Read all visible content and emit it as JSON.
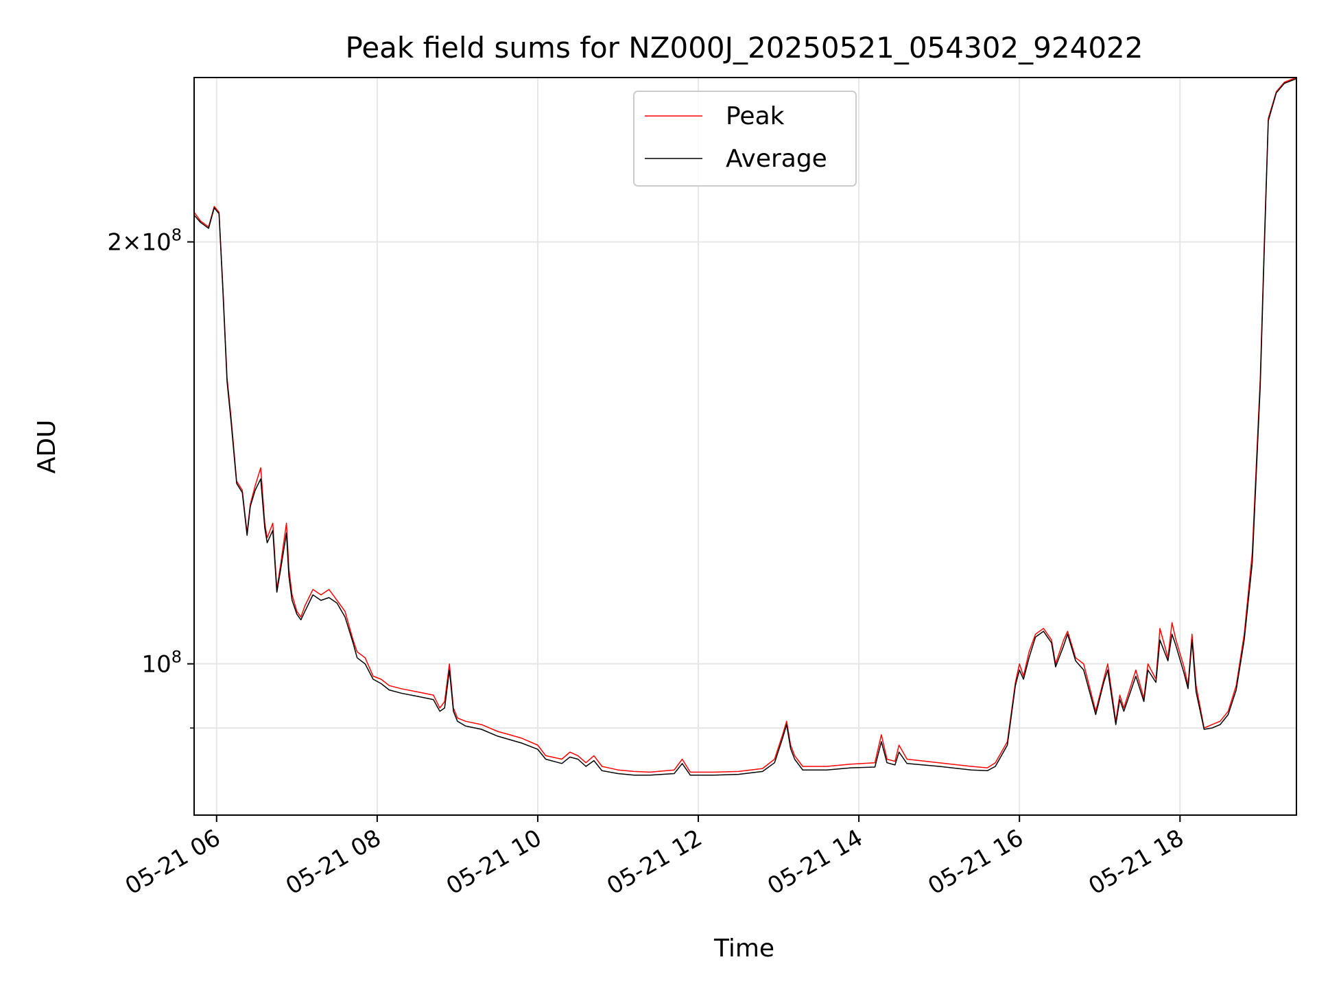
{
  "chart_data": {
    "type": "line",
    "title": "Peak field sums for NZ000J_20250521_054302_924022",
    "xlabel": "Time",
    "ylabel": "ADU",
    "y_scale": "log",
    "x_unit": "hours on 2025-05-21",
    "xlim": [
      5.72,
      19.45
    ],
    "ylim": [
      78000000,
      262000000
    ],
    "x_ticks": [
      6,
      8,
      10,
      12,
      14,
      16,
      18
    ],
    "x_tick_labels": [
      "05-21 06",
      "05-21 08",
      "05-21 10",
      "05-21 12",
      "05-21 14",
      "05-21 16",
      "05-21 18"
    ],
    "y_major_ticks": [
      200000000,
      100000000
    ],
    "y_major_tick_labels": [
      "2×10^8",
      "10^8"
    ],
    "y_minor_gridlines": [
      90000000
    ],
    "grid": true,
    "legend_placement": "top-center",
    "series": [
      {
        "name": "Peak",
        "color": "#ff0000",
        "x": [
          5.72,
          5.8,
          5.9,
          5.97,
          6.03,
          6.08,
          6.13,
          6.18,
          6.25,
          6.32,
          6.38,
          6.42,
          6.48,
          6.55,
          6.6,
          6.63,
          6.7,
          6.75,
          6.8,
          6.87,
          6.9,
          6.94,
          7.0,
          7.05,
          7.1,
          7.2,
          7.3,
          7.4,
          7.5,
          7.6,
          7.7,
          7.75,
          7.85,
          7.95,
          8.05,
          8.15,
          8.3,
          8.5,
          8.7,
          8.78,
          8.84,
          8.9,
          8.95,
          9.0,
          9.1,
          9.3,
          9.5,
          9.65,
          9.8,
          10.0,
          10.1,
          10.3,
          10.4,
          10.5,
          10.6,
          10.7,
          10.8,
          11.0,
          11.2,
          11.4,
          11.7,
          11.8,
          11.9,
          12.2,
          12.5,
          12.8,
          12.95,
          13.05,
          13.1,
          13.15,
          13.2,
          13.3,
          13.6,
          13.9,
          14.2,
          14.28,
          14.35,
          14.45,
          14.5,
          14.6,
          15.0,
          15.4,
          15.6,
          15.7,
          15.85,
          15.95,
          16.0,
          16.05,
          16.12,
          16.2,
          16.3,
          16.4,
          16.45,
          16.55,
          16.6,
          16.7,
          16.8,
          16.95,
          17.05,
          17.1,
          17.2,
          17.25,
          17.3,
          17.45,
          17.55,
          17.6,
          17.7,
          17.75,
          17.85,
          17.9,
          17.95,
          18.05,
          18.1,
          18.15,
          18.2,
          18.3,
          18.4,
          18.5,
          18.6,
          18.7,
          18.8,
          18.9,
          19.0,
          19.05,
          19.1,
          19.2,
          19.3,
          19.45
        ],
        "y": [
          210000000,
          207000000,
          205000000,
          212000000,
          210000000,
          185000000,
          160000000,
          150000000,
          135000000,
          133000000,
          124000000,
          130000000,
          134000000,
          138000000,
          126000000,
          123000000,
          126000000,
          113000000,
          118000000,
          126000000,
          117000000,
          112000000,
          109000000,
          108000000,
          110000000,
          113000000,
          112000000,
          113000000,
          111000000,
          109000000,
          104000000,
          102000000,
          101000000,
          98000000,
          97500000,
          96500000,
          96000000,
          95500000,
          95000000,
          93000000,
          94000000,
          100000000,
          93000000,
          91500000,
          91000000,
          90500000,
          89500000,
          89000000,
          88500000,
          87500000,
          86000000,
          85500000,
          86500000,
          86000000,
          85000000,
          86000000,
          84500000,
          84000000,
          83800000,
          83700000,
          84000000,
          85500000,
          83700000,
          83700000,
          83800000,
          84200000,
          85500000,
          89000000,
          91000000,
          87500000,
          86000000,
          84500000,
          84500000,
          84800000,
          85000000,
          89000000,
          85500000,
          85200000,
          87500000,
          85500000,
          85000000,
          84500000,
          84300000,
          85000000,
          88000000,
          97000000,
          100000000,
          98000000,
          102000000,
          105000000,
          106000000,
          104000000,
          100000000,
          104000000,
          105500000,
          101000000,
          100000000,
          92500000,
          97500000,
          100000000,
          91000000,
          95000000,
          93000000,
          99000000,
          94500000,
          100000000,
          97500000,
          106000000,
          101000000,
          107000000,
          104000000,
          99500000,
          96500000,
          105000000,
          96500000,
          90000000,
          90500000,
          91000000,
          92500000,
          96500000,
          105000000,
          120000000,
          160000000,
          200000000,
          245000000,
          256000000,
          260000000,
          262000000
        ]
      },
      {
        "name": "Average",
        "color": "#000000",
        "x": [
          5.72,
          5.8,
          5.9,
          5.97,
          6.03,
          6.08,
          6.13,
          6.18,
          6.25,
          6.32,
          6.38,
          6.42,
          6.48,
          6.55,
          6.6,
          6.63,
          6.7,
          6.75,
          6.8,
          6.87,
          6.9,
          6.94,
          7.0,
          7.05,
          7.1,
          7.2,
          7.3,
          7.4,
          7.5,
          7.6,
          7.7,
          7.75,
          7.85,
          7.95,
          8.05,
          8.15,
          8.3,
          8.5,
          8.7,
          8.78,
          8.84,
          8.9,
          8.95,
          9.0,
          9.1,
          9.3,
          9.5,
          9.65,
          9.8,
          10.0,
          10.1,
          10.3,
          10.4,
          10.5,
          10.6,
          10.7,
          10.8,
          11.0,
          11.2,
          11.4,
          11.7,
          11.8,
          11.9,
          12.2,
          12.5,
          12.8,
          12.95,
          13.05,
          13.1,
          13.15,
          13.2,
          13.3,
          13.6,
          13.9,
          14.2,
          14.28,
          14.35,
          14.45,
          14.5,
          14.6,
          15.0,
          15.4,
          15.6,
          15.7,
          15.85,
          15.95,
          16.0,
          16.05,
          16.12,
          16.2,
          16.3,
          16.4,
          16.45,
          16.55,
          16.6,
          16.7,
          16.8,
          16.95,
          17.05,
          17.1,
          17.2,
          17.25,
          17.3,
          17.45,
          17.55,
          17.6,
          17.7,
          17.75,
          17.85,
          17.9,
          17.95,
          18.05,
          18.1,
          18.15,
          18.2,
          18.3,
          18.4,
          18.5,
          18.6,
          18.7,
          18.8,
          18.9,
          19.0,
          19.05,
          19.1,
          19.2,
          19.3,
          19.45
        ],
        "y": [
          209000000,
          206500000,
          204500000,
          211500000,
          209500000,
          184000000,
          159000000,
          149000000,
          134500000,
          132500000,
          123500000,
          129500000,
          133000000,
          135500000,
          125000000,
          122000000,
          124500000,
          112500000,
          117000000,
          124000000,
          115500000,
          111000000,
          108500000,
          107500000,
          109000000,
          112000000,
          111000000,
          111500000,
          110500000,
          108000000,
          103500000,
          101000000,
          100000000,
          97500000,
          96800000,
          95800000,
          95300000,
          94800000,
          94300000,
          92500000,
          93000000,
          99000000,
          92500000,
          91000000,
          90300000,
          89800000,
          88800000,
          88300000,
          87800000,
          86900000,
          85500000,
          84900000,
          85800000,
          85500000,
          84500000,
          85300000,
          83900000,
          83500000,
          83300000,
          83300000,
          83500000,
          84900000,
          83300000,
          83300000,
          83400000,
          83800000,
          85000000,
          88500000,
          90500000,
          87000000,
          85500000,
          84000000,
          84000000,
          84300000,
          84400000,
          88000000,
          85000000,
          84700000,
          86500000,
          84900000,
          84500000,
          84000000,
          83900000,
          84500000,
          87500000,
          96500000,
          99000000,
          97500000,
          101000000,
          104500000,
          105500000,
          103500000,
          99500000,
          103000000,
          105000000,
          100500000,
          99000000,
          92000000,
          97000000,
          99000000,
          90500000,
          94300000,
          92500000,
          98000000,
          94000000,
          99000000,
          97000000,
          104000000,
          100500000,
          105000000,
          103000000,
          98500000,
          96000000,
          104000000,
          95500000,
          89800000,
          90000000,
          90500000,
          92000000,
          95800000,
          104000000,
          118000000,
          158000000,
          198000000,
          244000000,
          255500000,
          259500000,
          261500000
        ]
      }
    ]
  }
}
